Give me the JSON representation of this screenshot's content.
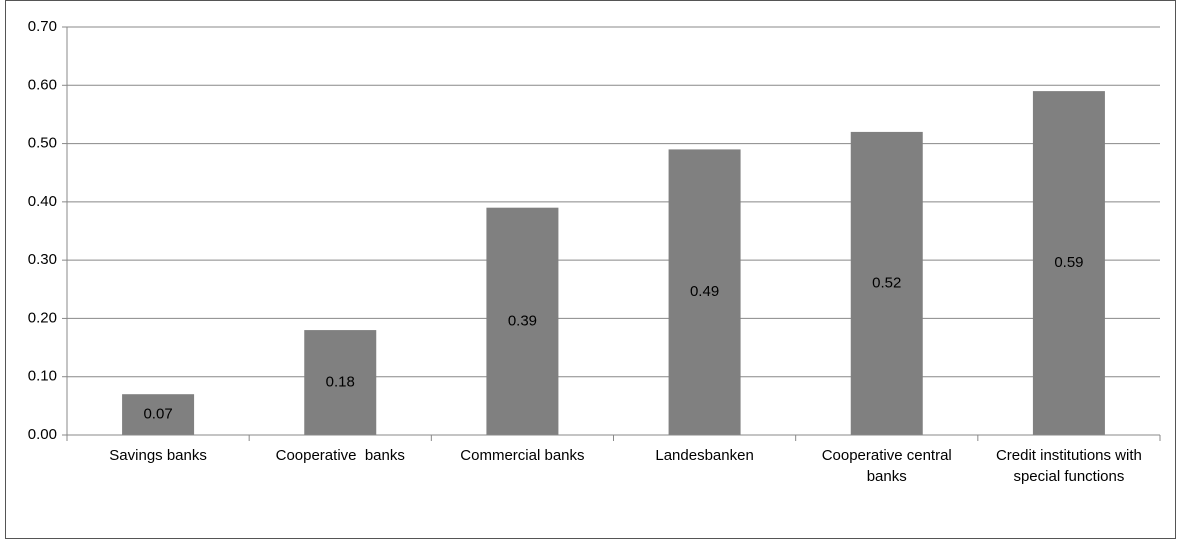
{
  "chart_data": {
    "type": "bar",
    "categories": [
      "Savings banks",
      "Cooperative  banks",
      "Commercial banks",
      "Landesbanken",
      "Cooperative central banks",
      "Credit institutions with special functions"
    ],
    "values": [
      0.07,
      0.18,
      0.39,
      0.49,
      0.52,
      0.59
    ],
    "color": "#808080",
    "ylim": [
      0,
      0.7
    ],
    "yticks": [
      {
        "value": 0,
        "label": "0.00"
      },
      {
        "value": 0.1,
        "label": "0.10"
      },
      {
        "value": 0.2,
        "label": "0.20"
      },
      {
        "value": 0.3,
        "label": "0.30"
      },
      {
        "value": 0.4,
        "label": "0.40"
      },
      {
        "value": 0.5,
        "label": "0.50"
      },
      {
        "value": 0.6,
        "label": "0.60"
      },
      {
        "value": 0.7,
        "label": "0.70"
      }
    ],
    "grid": true
  }
}
